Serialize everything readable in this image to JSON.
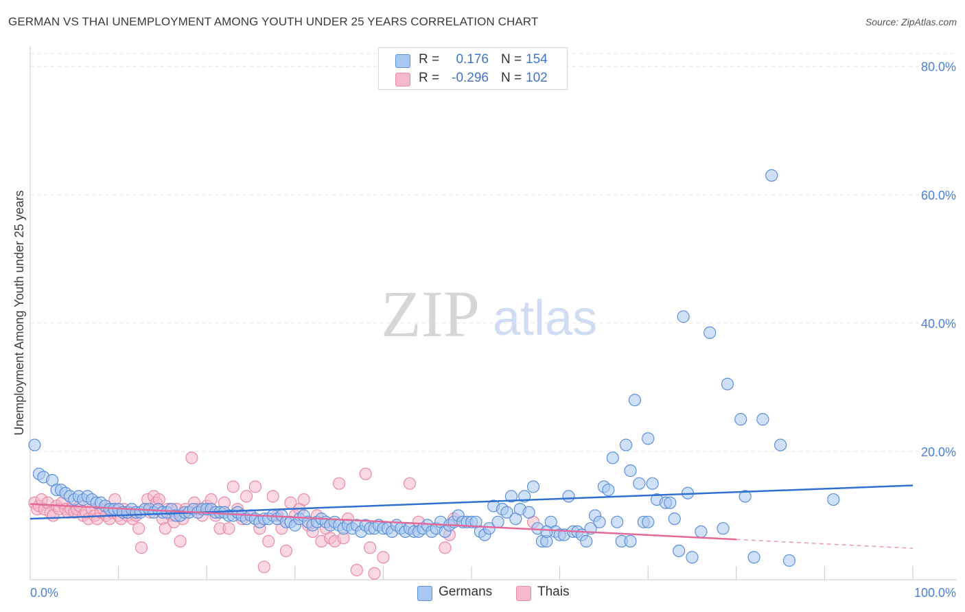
{
  "title": "GERMAN VS THAI UNEMPLOYMENT AMONG YOUTH UNDER 25 YEARS CORRELATION CHART",
  "source": "Source: ZipAtlas.com",
  "watermark": {
    "zip": "ZIP",
    "atlas": "atlas"
  },
  "legend": {
    "rows": [
      {
        "r_label": "R =",
        "r_value": "0.176",
        "n_label": "N =",
        "n_value": "154"
      },
      {
        "r_label": "R =",
        "r_value": "-0.296",
        "n_label": "N =",
        "n_value": "102"
      }
    ]
  },
  "bottom_legend": {
    "germans": "Germans",
    "thais": "Thais"
  },
  "colors": {
    "german_fill": "#a9c8f0",
    "german_stroke": "#5b8fd9",
    "german_line": "#2f6fd0",
    "thai_fill": "#f6b8cb",
    "thai_stroke": "#e889a7",
    "thai_line": "#e2699a",
    "tick_text": "#4a7fd4",
    "grid": "#e3e3e3"
  },
  "chart_data": {
    "type": "scatter",
    "title": "GERMAN VS THAI UNEMPLOYMENT AMONG YOUTH UNDER 25 YEARS CORRELATION CHART",
    "ylabel": "Unemployment Among Youth under 25 years",
    "xlabel": "",
    "xlim": [
      0,
      100
    ],
    "ylim": [
      0,
      82
    ],
    "x_tick_labels": [
      "0.0%",
      "100.0%"
    ],
    "y_ticks": [
      20,
      40,
      60,
      80
    ],
    "y_tick_labels": [
      "20.0%",
      "40.0%",
      "60.0%",
      "80.0%"
    ],
    "grid": true,
    "series": [
      {
        "name": "Germans",
        "r": 0.176,
        "n": 154,
        "trend": {
          "x0": 0,
          "y0": 9.5,
          "x1": 100,
          "y1": 14.7,
          "dashed_from": null
        },
        "points": [
          [
            0.5,
            21
          ],
          [
            1,
            16.5
          ],
          [
            1.5,
            16
          ],
          [
            2.5,
            15.5
          ],
          [
            3,
            14
          ],
          [
            3.5,
            14
          ],
          [
            4,
            13.5
          ],
          [
            4.5,
            13
          ],
          [
            5,
            12.5
          ],
          [
            5.5,
            13
          ],
          [
            6,
            12.5
          ],
          [
            6.5,
            13
          ],
          [
            7,
            12.5
          ],
          [
            7.5,
            12
          ],
          [
            8,
            12
          ],
          [
            8.5,
            11.5
          ],
          [
            9,
            11
          ],
          [
            9.5,
            11
          ],
          [
            10,
            11
          ],
          [
            10.5,
            10.5
          ],
          [
            11,
            10.5
          ],
          [
            11.5,
            11
          ],
          [
            12,
            10.5
          ],
          [
            12.5,
            10.5
          ],
          [
            13,
            11
          ],
          [
            13.5,
            11
          ],
          [
            14,
            10.5
          ],
          [
            14.5,
            11
          ],
          [
            15,
            10.5
          ],
          [
            15.5,
            10.5
          ],
          [
            16,
            11
          ],
          [
            16.5,
            10
          ],
          [
            17,
            10
          ],
          [
            17.5,
            10.5
          ],
          [
            18,
            10.5
          ],
          [
            18.5,
            11
          ],
          [
            19,
            10.5
          ],
          [
            19.5,
            11
          ],
          [
            20,
            11
          ],
          [
            20.5,
            11
          ],
          [
            21,
            10.5
          ],
          [
            21.5,
            10.5
          ],
          [
            22,
            10.5
          ],
          [
            22.5,
            10
          ],
          [
            23,
            10
          ],
          [
            23.5,
            10.5
          ],
          [
            24,
            10
          ],
          [
            24.5,
            9.5
          ],
          [
            25,
            10
          ],
          [
            25.5,
            9.5
          ],
          [
            26,
            9
          ],
          [
            26.5,
            9.5
          ],
          [
            27,
            9.5
          ],
          [
            27.5,
            10
          ],
          [
            28,
            9.5
          ],
          [
            28.5,
            10
          ],
          [
            29,
            9
          ],
          [
            29.5,
            9
          ],
          [
            30,
            8.5
          ],
          [
            30.5,
            9.5
          ],
          [
            31,
            10
          ],
          [
            31.5,
            9
          ],
          [
            32,
            8.5
          ],
          [
            32.5,
            9
          ],
          [
            33,
            9.5
          ],
          [
            33.5,
            9
          ],
          [
            34,
            8.5
          ],
          [
            34.5,
            9
          ],
          [
            35,
            8.5
          ],
          [
            35.5,
            8
          ],
          [
            36,
            8.5
          ],
          [
            36.5,
            8
          ],
          [
            37,
            8.5
          ],
          [
            37.5,
            7.5
          ],
          [
            38,
            8.5
          ],
          [
            38.5,
            8
          ],
          [
            39,
            8
          ],
          [
            39.5,
            8.5
          ],
          [
            40,
            8
          ],
          [
            40.5,
            8
          ],
          [
            41,
            7.5
          ],
          [
            41.5,
            8.5
          ],
          [
            42,
            8
          ],
          [
            42.5,
            7.5
          ],
          [
            43,
            8
          ],
          [
            43.5,
            7.5
          ],
          [
            44,
            7.5
          ],
          [
            44.5,
            8
          ],
          [
            45,
            8.5
          ],
          [
            45.5,
            7.5
          ],
          [
            46,
            8
          ],
          [
            46.5,
            9
          ],
          [
            47,
            7.5
          ],
          [
            47.5,
            8.5
          ],
          [
            48,
            9
          ],
          [
            48.5,
            10
          ],
          [
            49,
            9
          ],
          [
            49.5,
            9
          ],
          [
            50,
            9
          ],
          [
            50.5,
            9
          ],
          [
            51,
            7.5
          ],
          [
            51.5,
            7
          ],
          [
            52,
            8
          ],
          [
            52.5,
            11.5
          ],
          [
            53,
            9
          ],
          [
            53.5,
            11
          ],
          [
            54,
            10.5
          ],
          [
            54.5,
            13
          ],
          [
            55,
            9.5
          ],
          [
            55.5,
            11
          ],
          [
            56,
            13
          ],
          [
            56.5,
            10.5
          ],
          [
            57,
            14.5
          ],
          [
            57.5,
            8
          ],
          [
            58,
            6
          ],
          [
            58.5,
            6
          ],
          [
            59,
            9
          ],
          [
            59.5,
            7.5
          ],
          [
            60,
            7
          ],
          [
            60.5,
            7
          ],
          [
            61,
            13
          ],
          [
            61.5,
            7.5
          ],
          [
            62,
            7.5
          ],
          [
            62.5,
            7
          ],
          [
            63,
            6
          ],
          [
            63.5,
            8
          ],
          [
            64,
            10
          ],
          [
            64.5,
            9
          ],
          [
            65,
            14.5
          ],
          [
            65.5,
            14
          ],
          [
            66,
            19
          ],
          [
            67,
            6
          ],
          [
            67.5,
            21
          ],
          [
            68,
            6
          ],
          [
            68.5,
            28
          ],
          [
            69,
            15
          ],
          [
            70,
            22
          ],
          [
            70.5,
            15
          ],
          [
            71,
            12.5
          ],
          [
            72,
            12
          ],
          [
            73,
            9.5
          ],
          [
            73.5,
            4.5
          ],
          [
            74,
            41
          ],
          [
            74.5,
            13.5
          ],
          [
            75,
            3.5
          ],
          [
            76,
            7.5
          ],
          [
            77,
            38.5
          ],
          [
            78.5,
            8
          ],
          [
            79,
            30.5
          ],
          [
            80.5,
            25
          ],
          [
            81,
            13
          ],
          [
            82,
            3.5
          ],
          [
            83,
            25
          ],
          [
            84,
            63
          ],
          [
            85,
            21
          ],
          [
            86,
            3
          ],
          [
            91,
            12.5
          ],
          [
            66.5,
            9
          ],
          [
            72.5,
            12
          ],
          [
            68,
            17
          ],
          [
            69.5,
            9
          ],
          [
            70,
            9
          ],
          [
            58.5,
            7.5
          ]
        ]
      },
      {
        "name": "Thais",
        "r": -0.296,
        "n": 102,
        "trend": {
          "x0": 0,
          "y0": 11.8,
          "x1": 100,
          "y1": 4.9,
          "dashed_from": 80
        },
        "points": [
          [
            0.5,
            12
          ],
          [
            0.8,
            11
          ],
          [
            1,
            11.5
          ],
          [
            1.3,
            12.5
          ],
          [
            1.6,
            11
          ],
          [
            2,
            12
          ],
          [
            2.3,
            10.5
          ],
          [
            2.6,
            10
          ],
          [
            3,
            11.5
          ],
          [
            3.3,
            11
          ],
          [
            3.6,
            12
          ],
          [
            4,
            11
          ],
          [
            4.3,
            10.5
          ],
          [
            4.6,
            11
          ],
          [
            5,
            10.5
          ],
          [
            5.3,
            11
          ],
          [
            5.6,
            11.5
          ],
          [
            6,
            10
          ],
          [
            6.3,
            10.5
          ],
          [
            6.6,
            9.5
          ],
          [
            7,
            11
          ],
          [
            7.3,
            10
          ],
          [
            7.6,
            9.5
          ],
          [
            8,
            10.5
          ],
          [
            8.3,
            11
          ],
          [
            8.6,
            10
          ],
          [
            9,
            9.5
          ],
          [
            9.3,
            10.5
          ],
          [
            9.6,
            12.5
          ],
          [
            10,
            10
          ],
          [
            10.3,
            9.5
          ],
          [
            10.6,
            11
          ],
          [
            11,
            10
          ],
          [
            11.3,
            10.5
          ],
          [
            11.6,
            9.5
          ],
          [
            12,
            10
          ],
          [
            12.3,
            8
          ],
          [
            12.6,
            5
          ],
          [
            13,
            11
          ],
          [
            13.3,
            12.5
          ],
          [
            13.6,
            10.5
          ],
          [
            14,
            13
          ],
          [
            14.3,
            12
          ],
          [
            14.6,
            12.5
          ],
          [
            15,
            9.5
          ],
          [
            15.3,
            8
          ],
          [
            15.6,
            11
          ],
          [
            16,
            10
          ],
          [
            16.3,
            9
          ],
          [
            16.6,
            11
          ],
          [
            17,
            6
          ],
          [
            17.3,
            9.5
          ],
          [
            17.6,
            11
          ],
          [
            18,
            10.5
          ],
          [
            18.3,
            19
          ],
          [
            18.6,
            12
          ],
          [
            19,
            11
          ],
          [
            19.5,
            10
          ],
          [
            20,
            11.5
          ],
          [
            20.5,
            12.5
          ],
          [
            21,
            10
          ],
          [
            21.5,
            8
          ],
          [
            22,
            12
          ],
          [
            22.5,
            8
          ],
          [
            23,
            14.5
          ],
          [
            23.5,
            11
          ],
          [
            24,
            9.5
          ],
          [
            24.5,
            13
          ],
          [
            25,
            10
          ],
          [
            25.5,
            14.5
          ],
          [
            26,
            8
          ],
          [
            26.5,
            2
          ],
          [
            27,
            6
          ],
          [
            27.5,
            13
          ],
          [
            28,
            10
          ],
          [
            28.5,
            8
          ],
          [
            29,
            4.5
          ],
          [
            29.5,
            12
          ],
          [
            30,
            10
          ],
          [
            30.5,
            11
          ],
          [
            31,
            12.5
          ],
          [
            31.5,
            8.5
          ],
          [
            32,
            7.5
          ],
          [
            32.5,
            10
          ],
          [
            33,
            6
          ],
          [
            33.5,
            8
          ],
          [
            34,
            6.5
          ],
          [
            34.5,
            6
          ],
          [
            35,
            15
          ],
          [
            35.5,
            6.5
          ],
          [
            36,
            9.5
          ],
          [
            37,
            1.5
          ],
          [
            38,
            16.5
          ],
          [
            38.5,
            5
          ],
          [
            39,
            1
          ],
          [
            40,
            3.5
          ],
          [
            43,
            15
          ],
          [
            44,
            9
          ],
          [
            47,
            5
          ],
          [
            47.5,
            7
          ],
          [
            48,
            9.5
          ],
          [
            57,
            9
          ]
        ]
      }
    ]
  }
}
